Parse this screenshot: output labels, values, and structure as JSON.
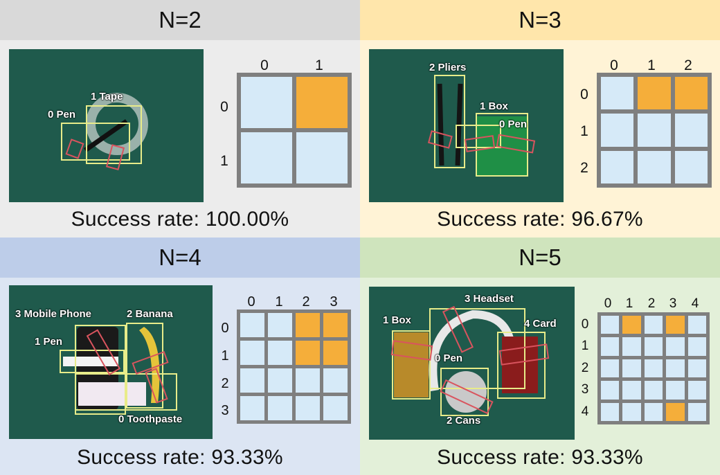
{
  "colors": {
    "accent_cell": "#f5ae3a",
    "empty_cell": "#d6eaf8",
    "grid_border": "#7f7f7f",
    "bbox": "#e8ec8a",
    "grasp": "#d9545e"
  },
  "panels": [
    {
      "title": "N=2",
      "success": "Success rate: 100.00%",
      "labels": [
        "1 Tape",
        "0 Pen"
      ],
      "indices": [
        "0",
        "1"
      ],
      "grid": [
        [
          0,
          1
        ],
        [
          0,
          0
        ]
      ]
    },
    {
      "title": "N=3",
      "success": "Success rate: 96.67%",
      "labels": [
        "2 Pliers",
        "1 Box",
        "0 Pen"
      ],
      "indices": [
        "0",
        "1",
        "2"
      ],
      "grid": [
        [
          0,
          1,
          1
        ],
        [
          0,
          0,
          0
        ],
        [
          0,
          0,
          0
        ]
      ]
    },
    {
      "title": "N=4",
      "success": "Success rate: 93.33%",
      "labels": [
        "3 Mobile Phone",
        "2 Banana",
        "1 Pen",
        "0 Toothpaste"
      ],
      "indices": [
        "0",
        "1",
        "2",
        "3"
      ],
      "grid": [
        [
          0,
          0,
          1,
          1
        ],
        [
          0,
          0,
          1,
          1
        ],
        [
          0,
          0,
          0,
          0
        ],
        [
          0,
          0,
          0,
          0
        ]
      ]
    },
    {
      "title": "N=5",
      "success": "Success rate: 93.33%",
      "labels": [
        "3 Headset",
        "1 Box",
        "4 Card",
        "0 Pen",
        "2 Cans"
      ],
      "indices": [
        "0",
        "1",
        "2",
        "3",
        "4"
      ],
      "grid": [
        [
          0,
          1,
          0,
          1,
          0
        ],
        [
          0,
          0,
          0,
          0,
          0
        ],
        [
          0,
          0,
          0,
          0,
          0
        ],
        [
          0,
          0,
          0,
          0,
          0
        ],
        [
          0,
          0,
          0,
          1,
          0
        ]
      ]
    }
  ]
}
